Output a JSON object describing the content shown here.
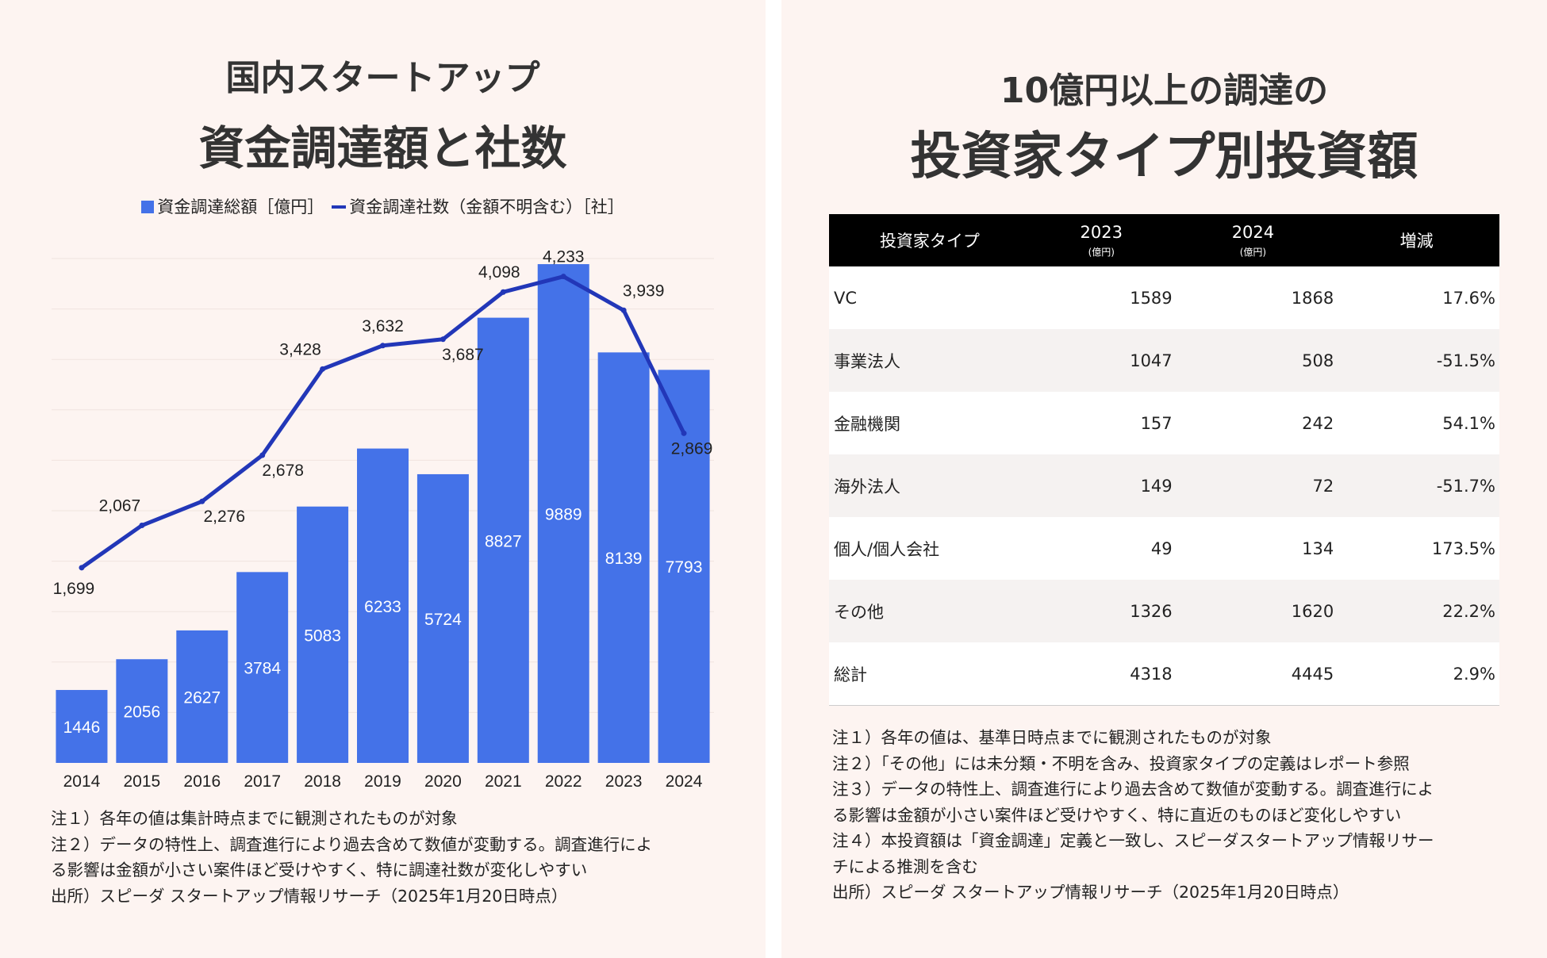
{
  "left": {
    "title_line1": "国内スタートアップ",
    "title_line2": "資金調達額と社数",
    "legend": {
      "bar_label": "資金調達総額［億円］",
      "line_label": "資金調達社数（金額不明含む）［社］"
    },
    "notes": [
      "注１）各年の値は集計時点までに観測されたものが対象",
      "注２）データの特性上、調査進行により過去含めて数値が変動する。調査進行によ",
      "る影響は金額が小さい案件ほど受けやすく、特に調達社数が変化しやすい",
      "出所）スピーダ スタートアップ情報リサーチ（2025年1月20日時点）"
    ]
  },
  "chart_data": {
    "type": "bar",
    "title": "資金調達額と社数",
    "categories": [
      "2014",
      "2015",
      "2016",
      "2017",
      "2018",
      "2019",
      "2020",
      "2021",
      "2022",
      "2023",
      "2024"
    ],
    "series": [
      {
        "name": "資金調達総額［億円］",
        "type": "bar",
        "values": [
          1446,
          2056,
          2627,
          3784,
          5083,
          6233,
          5724,
          8827,
          9889,
          8139,
          7793
        ],
        "labels": [
          "1446",
          "2056",
          "2627",
          "3784",
          "5083",
          "6233",
          "5724",
          "8827",
          "9889",
          "8139",
          "7793"
        ]
      },
      {
        "name": "資金調達社数（金額不明含む）［社］",
        "type": "line",
        "values": [
          1699,
          2067,
          2276,
          2678,
          3428,
          3632,
          3687,
          4098,
          4233,
          3939,
          2869
        ],
        "labels": [
          "1,699",
          "2,067",
          "2,276",
          "2,678",
          "3,428",
          "3,632",
          "3,687",
          "4,098",
          "4,233",
          "3,939",
          "2,869"
        ]
      }
    ],
    "bar_ylim": [
      0,
      10000
    ],
    "line_ylim": [
      0,
      4500
    ],
    "colors": {
      "bar": "#4472e8",
      "line": "#2237b8",
      "bar_label": "#ffffff"
    },
    "legend_position": "top"
  },
  "right": {
    "title_line1": "10億円以上の調達の",
    "title_line2": "投資家タイプ別投資額",
    "table": {
      "headers": {
        "type": "投資家タイプ",
        "y2023": "2023",
        "y2024": "2024",
        "unit": "(億円)",
        "change": "増減"
      },
      "rows": [
        {
          "type": "VC",
          "v2023": "1589",
          "v2024": "1868",
          "change": "17.6%"
        },
        {
          "type": "事業法人",
          "v2023": "1047",
          "v2024": "508",
          "change": "-51.5%"
        },
        {
          "type": "金融機関",
          "v2023": "157",
          "v2024": "242",
          "change": "54.1%"
        },
        {
          "type": "海外法人",
          "v2023": "149",
          "v2024": "72",
          "change": "-51.7%"
        },
        {
          "type": "個人/個人会社",
          "v2023": "49",
          "v2024": "134",
          "change": "173.5%"
        },
        {
          "type": "その他",
          "v2023": "1326",
          "v2024": "1620",
          "change": "22.2%"
        },
        {
          "type": "総計",
          "v2023": "4318",
          "v2024": "4445",
          "change": "2.9%"
        }
      ]
    },
    "notes": [
      "注１）各年の値は、基準日時点までに観測されたものが対象",
      "注２）「その他」には未分類・不明を含み、投資家タイプの定義はレポート参照",
      "注３）データの特性上、調査進行により過去含めて数値が変動する。調査進行によ",
      "る影響は金額が小さい案件ほど受けやすく、特に直近のものほど変化しやすい",
      "注４）本投資額は「資金調達」定義と一致し、スピーダスタートアップ情報リサー",
      "チによる推測を含む",
      "出所）スピーダ スタートアップ情報リサーチ（2025年1月20日時点）"
    ]
  }
}
